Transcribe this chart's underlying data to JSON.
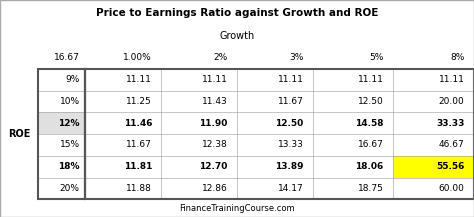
{
  "title1": "Price to Earnings Ratio against Growth and ROE",
  "title2": "Growth",
  "footer": "FinanceTrainingCourse.com",
  "corner_value": "16.67",
  "col_headers": [
    "1.00%",
    "2%",
    "3%",
    "5%",
    "8%"
  ],
  "row_headers": [
    "9%",
    "10%",
    "12%",
    "15%",
    "18%",
    "20%"
  ],
  "row_label": "ROE",
  "data": [
    [
      11.11,
      11.11,
      11.11,
      11.11,
      11.11
    ],
    [
      11.25,
      11.43,
      11.67,
      12.5,
      20.0
    ],
    [
      11.46,
      11.9,
      12.5,
      14.58,
      33.33
    ],
    [
      11.67,
      12.38,
      13.33,
      16.67,
      46.67
    ],
    [
      11.81,
      12.7,
      13.89,
      18.06,
      55.56
    ],
    [
      11.88,
      12.86,
      14.17,
      18.75,
      60.0
    ]
  ],
  "bold_rows": [
    2,
    4
  ],
  "highlight_cell": [
    4,
    4
  ],
  "highlight_color": "#FFFF00",
  "bg_color": "#FFFFFF",
  "header_bg": "#E8E8E8",
  "border_color": "#999999",
  "thick_border_color": "#555555",
  "text_color": "#000000",
  "title_color": "#000000",
  "footer_color": "#000000"
}
